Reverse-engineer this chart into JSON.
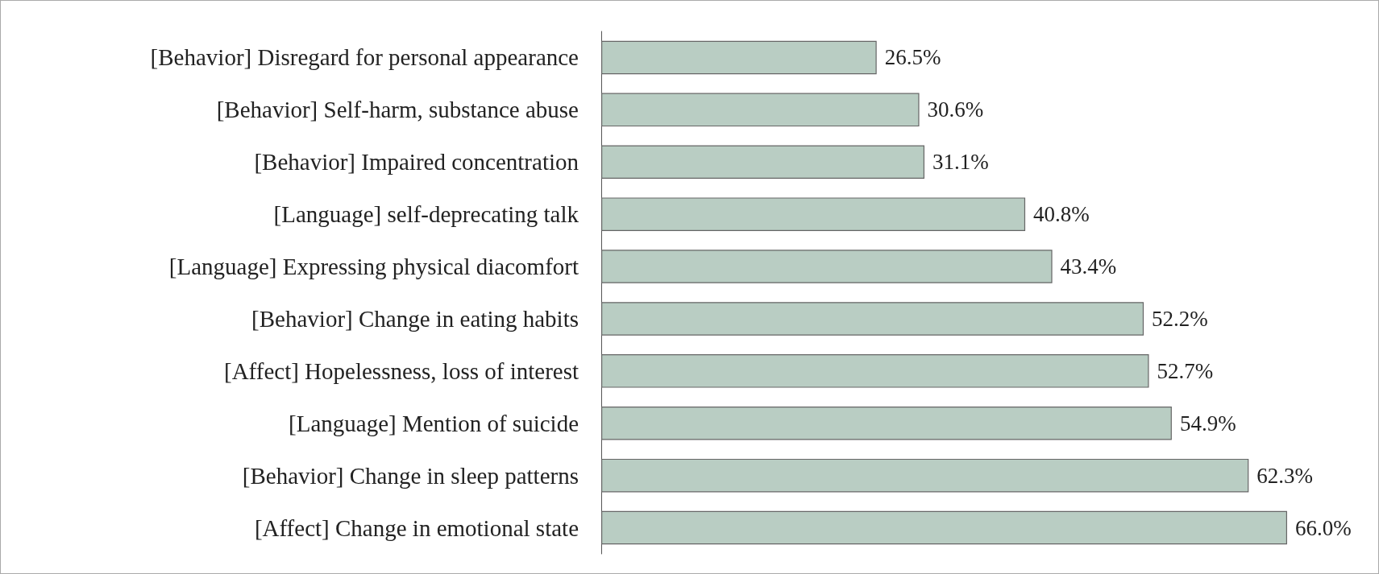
{
  "chart_data": {
    "type": "bar",
    "orientation": "horizontal",
    "categories": [
      "[Behavior] Disregard for personal appearance",
      "[Behavior] Self-harm, substance abuse",
      "[Behavior] Impaired concentration",
      "[Language] self-deprecating talk",
      "[Language] Expressing physical diacomfort",
      "[Behavior] Change in eating habits",
      "[Affect] Hopelessness, loss of interest",
      "[Language] Mention of suicide",
      "[Behavior] Change in sleep patterns",
      "[Affect] Change in emotional state"
    ],
    "values": [
      26.5,
      30.6,
      31.1,
      40.8,
      43.4,
      52.2,
      52.7,
      54.9,
      62.3,
      66.0
    ],
    "value_labels": [
      "26.5%",
      "30.6%",
      "31.1%",
      "40.8%",
      "43.4%",
      "52.2%",
      "52.7%",
      "54.9%",
      "62.3%",
      "66.0%"
    ],
    "color": "#b9cdc3",
    "xlim": [
      0,
      66
    ],
    "tick_labels": "y"
  }
}
